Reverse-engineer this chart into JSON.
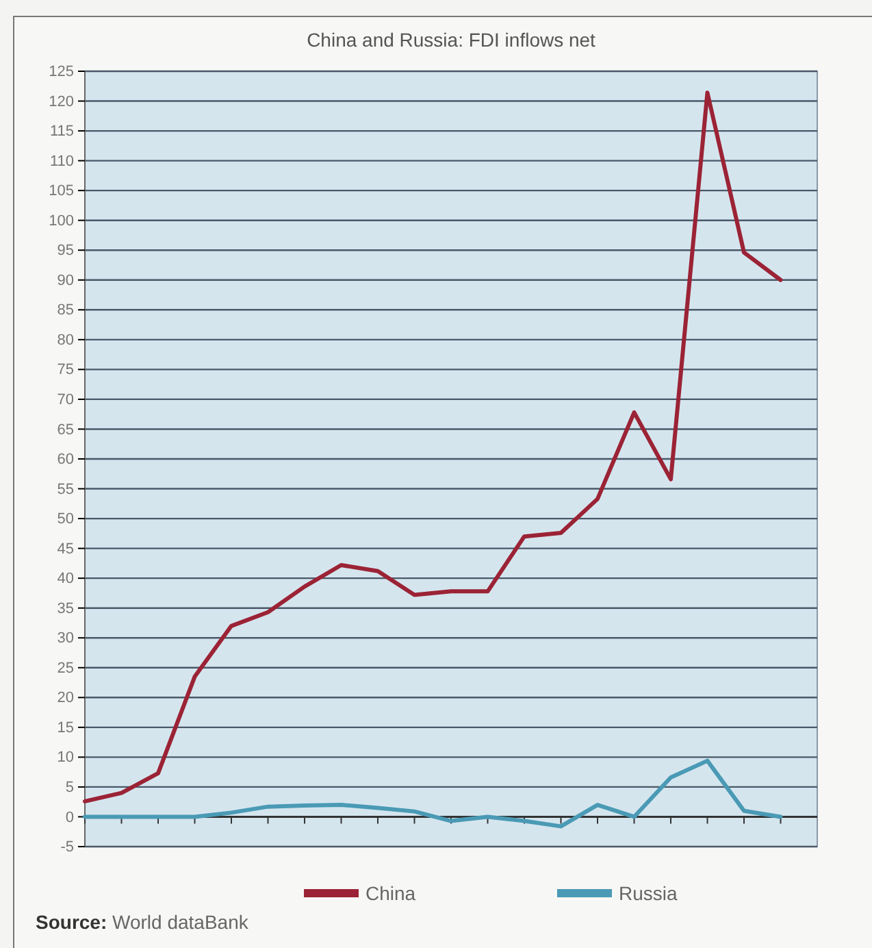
{
  "chart_data": {
    "type": "line",
    "title": "China and Russia: FDI inflows net",
    "categories": [
      null,
      null,
      null,
      null,
      null,
      null,
      null,
      null,
      null,
      null,
      null,
      null,
      null,
      null,
      null,
      null,
      null,
      null,
      null,
      null
    ],
    "series": [
      {
        "name": "China",
        "color": "#9b2335",
        "values": [
          2.6,
          4,
          7.3,
          23.5,
          32,
          34.3,
          38.6,
          42.2,
          41.2,
          37.2,
          37.8,
          37.8,
          47,
          47.6,
          53.3,
          67.8,
          56.6,
          121.4,
          94.6,
          90
        ]
      },
      {
        "name": "Russia",
        "color": "#4a9ab5",
        "values": [
          0,
          0,
          0,
          0,
          0.7,
          1.7,
          1.9,
          2,
          1.5,
          0.9,
          -0.7,
          0,
          -0.7,
          -1.6,
          2,
          0,
          6.6,
          9.4,
          1,
          0
        ]
      }
    ],
    "ylim": [
      -5,
      125
    ],
    "yticks": [
      -5,
      0,
      5,
      10,
      15,
      20,
      25,
      30,
      35,
      40,
      45,
      50,
      55,
      60,
      65,
      70,
      75,
      80,
      85,
      90,
      95,
      100,
      105,
      110,
      115,
      120,
      125
    ],
    "grid": "y",
    "legend": "bottom",
    "tick_labels": "y",
    "marker": "none",
    "line_style": "solid",
    "annotations": [
      "Source: World dataBank"
    ]
  }
}
